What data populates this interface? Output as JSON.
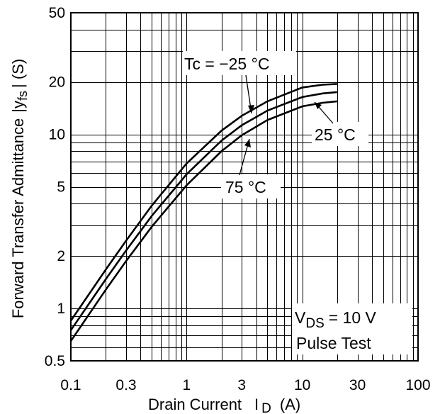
{
  "chart_data": {
    "type": "line",
    "xscale": "log",
    "yscale": "log",
    "xlim": [
      0.1,
      100
    ],
    "ylim": [
      0.5,
      50
    ],
    "xlabel": "Drain Current",
    "xlabel_symbol": "I",
    "xlabel_sub": "D",
    "xlabel_unit": "(A)",
    "ylabel": "Forward Transfer Admittance",
    "ylabel_symbol": "|y",
    "ylabel_sub": "fs",
    "ylabel_unit": "| (S)",
    "x_ticks": [
      {
        "value": 0.1,
        "label": "0.1"
      },
      {
        "value": 0.3,
        "label": "0.3"
      },
      {
        "value": 1,
        "label": "1"
      },
      {
        "value": 3,
        "label": "3"
      },
      {
        "value": 10,
        "label": "10"
      },
      {
        "value": 30,
        "label": "30"
      },
      {
        "value": 100,
        "label": "100"
      }
    ],
    "y_ticks": [
      {
        "value": 0.5,
        "label": "0.5"
      },
      {
        "value": 1,
        "label": "1"
      },
      {
        "value": 2,
        "label": "2"
      },
      {
        "value": 5,
        "label": "5"
      },
      {
        "value": 10,
        "label": "10"
      },
      {
        "value": 20,
        "label": "20"
      },
      {
        "value": 50,
        "label": "50"
      }
    ],
    "grid": true,
    "series": [
      {
        "name": "Tc = −25 °C",
        "x": [
          0.1,
          0.2,
          0.3,
          0.5,
          1,
          2,
          3,
          5,
          10,
          15,
          20
        ],
        "y": [
          0.85,
          1.67,
          2.45,
          3.9,
          6.8,
          10.5,
          12.8,
          15.5,
          18.6,
          19.3,
          19.5
        ]
      },
      {
        "name": "25 °C",
        "x": [
          0.1,
          0.2,
          0.3,
          0.5,
          1,
          2,
          3,
          5,
          10,
          15,
          20
        ],
        "y": [
          0.75,
          1.47,
          2.15,
          3.4,
          5.9,
          9.2,
          11.3,
          13.7,
          16.4,
          17.2,
          17.5
        ]
      },
      {
        "name": "75 °C",
        "x": [
          0.1,
          0.2,
          0.3,
          0.5,
          1,
          2,
          3,
          5,
          10,
          15,
          20
        ],
        "y": [
          0.65,
          1.28,
          1.87,
          2.95,
          5.1,
          8.0,
          9.9,
          12.1,
          14.5,
          15.2,
          15.5
        ]
      }
    ],
    "annotations": {
      "condition_vds": "V",
      "condition_vds_sub": "DS",
      "condition_vds_value": "= 10 V",
      "condition_pulse": "Pulse Test"
    }
  }
}
